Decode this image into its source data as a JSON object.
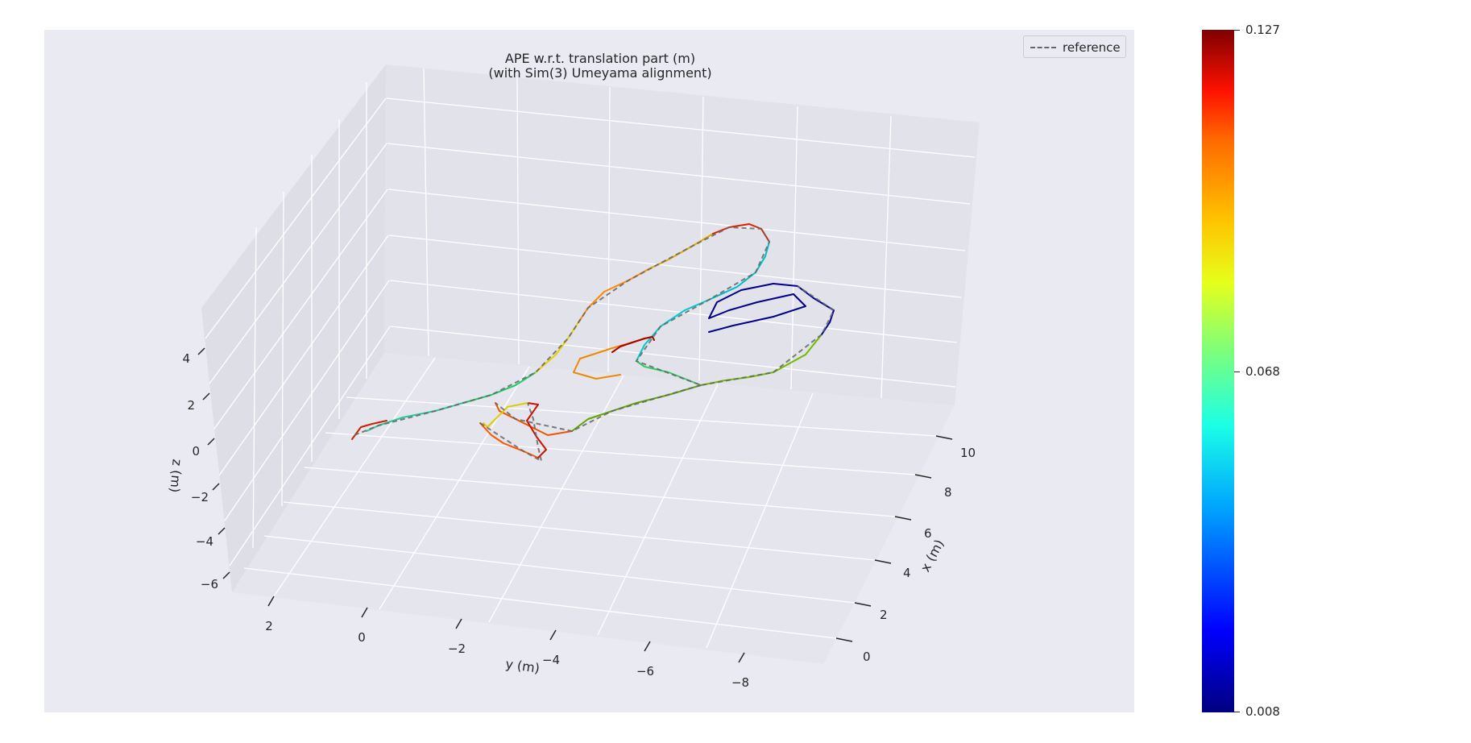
{
  "chart_data": {
    "type": "line",
    "title": "APE w.r.t. translation part (m)",
    "subtitle": "(with Sim(3) Umeyama alignment)",
    "xlabel": "x (m)",
    "ylabel": "y (m)",
    "zlabel": "z (m)",
    "x_ticks": [
      "0",
      "2",
      "4",
      "6",
      "8",
      "10"
    ],
    "y_ticks": [
      "2",
      "0",
      "−2",
      "−4",
      "−6",
      "−8"
    ],
    "z_ticks": [
      "−6",
      "−4",
      "−2",
      "0",
      "2",
      "4"
    ],
    "grid": true,
    "legend": {
      "position": "top-right",
      "entries": [
        "reference"
      ]
    },
    "colorbar": {
      "colormap": "jet",
      "min": 0.008,
      "max": 0.127,
      "tick_labels": [
        "0.127",
        "0.068",
        "0.008"
      ]
    },
    "series": [
      {
        "name": "reference",
        "style": "dashed",
        "color": "#666666"
      }
    ]
  },
  "colors": {
    "panel_background": "#eaeaf2",
    "grid": "#ffffff",
    "reference": "#666666"
  }
}
